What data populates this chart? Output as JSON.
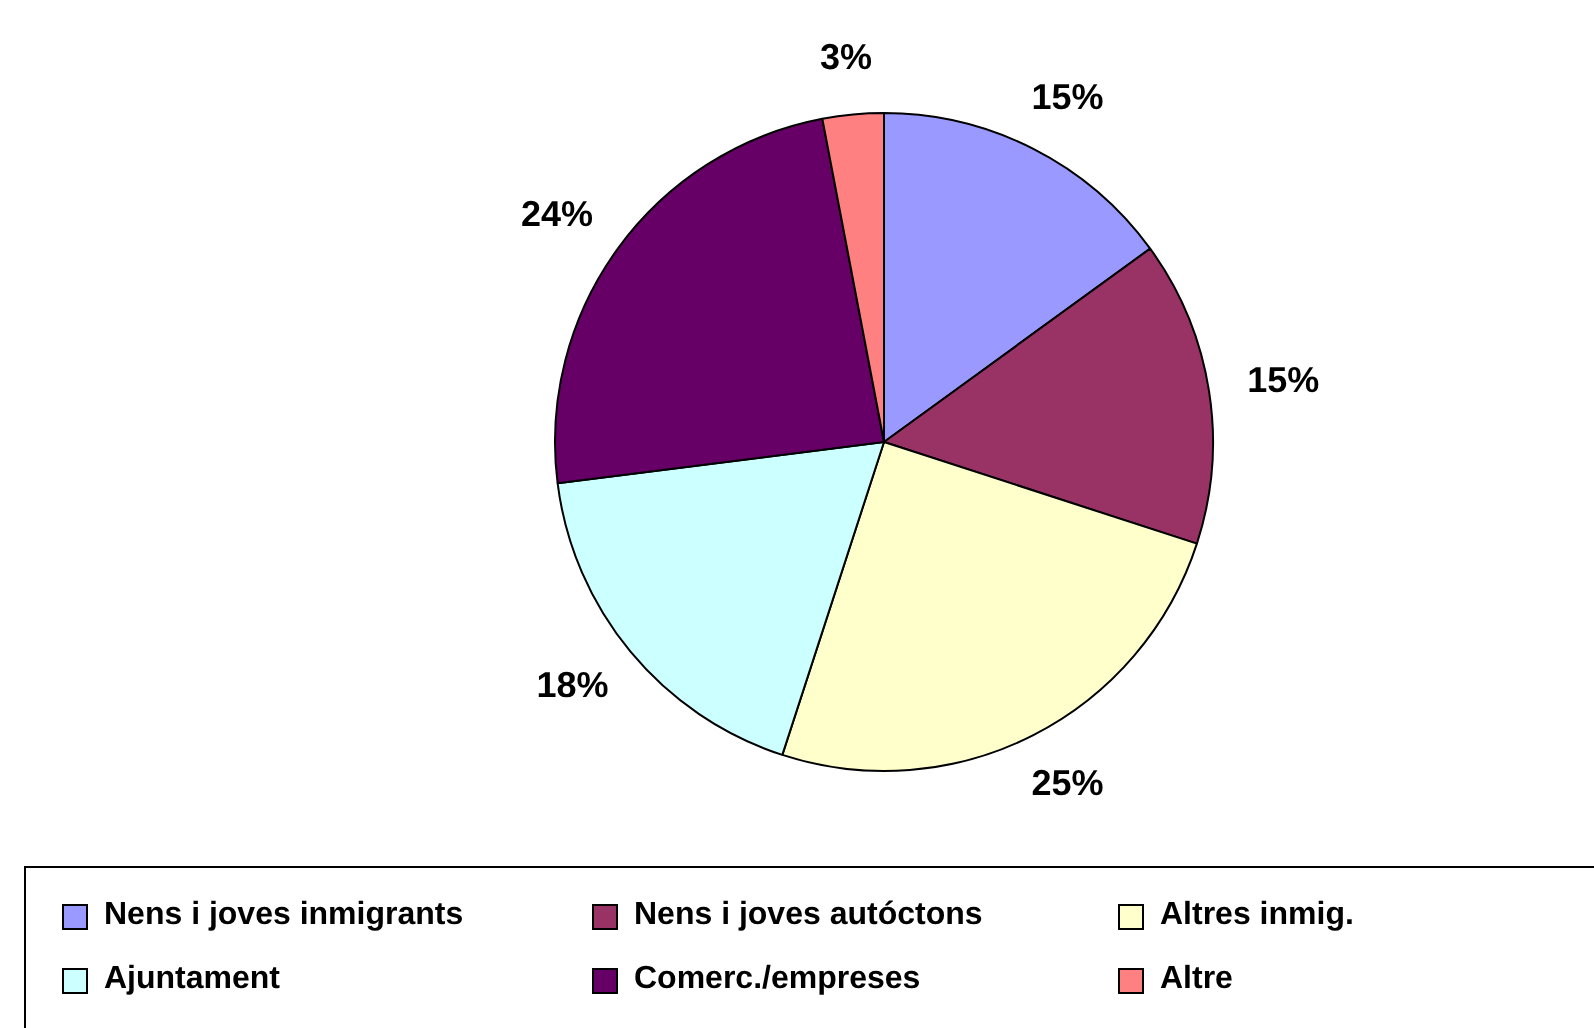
{
  "chart_data": {
    "type": "pie",
    "categories": [
      "Nens i joves inmigrants",
      "Nens i joves autóctons",
      "Altres inmig.",
      "Ajuntament",
      "Comerc./empreses",
      "Altre"
    ],
    "values": [
      15,
      15,
      25,
      18,
      24,
      3
    ],
    "colors": [
      "#9999ff",
      "#993366",
      "#ffffcc",
      "#ccffff",
      "#660066",
      "#ff8080"
    ],
    "value_labels": [
      "15%",
      "15%",
      "25%",
      "18%",
      "24%",
      "3%"
    ],
    "legend": "bottom"
  }
}
